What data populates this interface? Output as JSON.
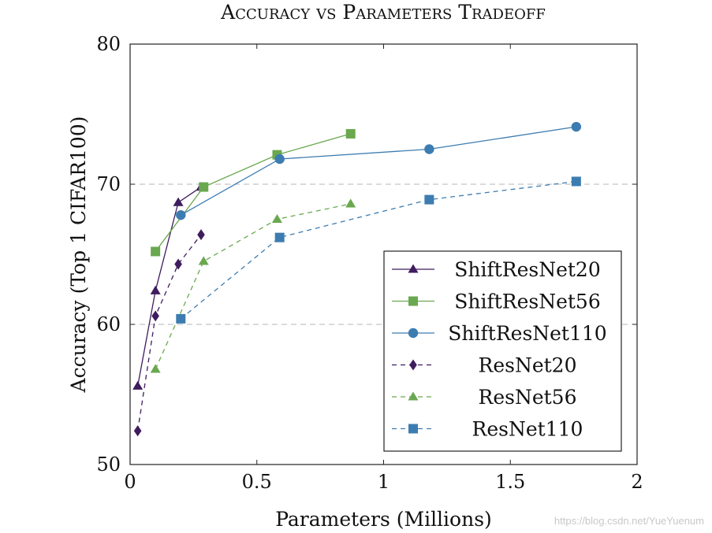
{
  "chart_data": {
    "type": "line",
    "title": "Accuracy vs Parameters Tradeoff",
    "xlabel": "Parameters (Millions)",
    "ylabel": "Accuracy (Top 1 CIFAR100)",
    "xlim": [
      0,
      2
    ],
    "ylim": [
      50,
      80
    ],
    "xticks": [
      0,
      0.5,
      1,
      1.5,
      2
    ],
    "xtick_labels": [
      "0",
      "0.5",
      "1",
      "1.5",
      "2"
    ],
    "yticks": [
      50,
      60,
      70,
      80
    ],
    "ytick_labels": [
      "50",
      "60",
      "70",
      "80"
    ],
    "hgrid": [
      60,
      70
    ],
    "legend_position": "bottom-right",
    "series": [
      {
        "name": "ShiftResNet20",
        "color": "#3f1c5e",
        "marker": "triangle",
        "dash": "solid",
        "x": [
          0.03,
          0.1,
          0.19,
          0.28
        ],
        "y": [
          55.6,
          62.4,
          68.7,
          69.8
        ]
      },
      {
        "name": "ShiftResNet56",
        "color": "#6aa84f",
        "marker": "square",
        "dash": "solid",
        "x": [
          0.1,
          0.29,
          0.58,
          0.87
        ],
        "y": [
          65.2,
          69.8,
          72.1,
          73.6
        ]
      },
      {
        "name": "ShiftResNet110",
        "color": "#3d7cb0",
        "marker": "circle",
        "dash": "solid",
        "x": [
          0.2,
          0.59,
          1.18,
          1.76
        ],
        "y": [
          67.8,
          71.8,
          72.5,
          74.1
        ]
      },
      {
        "name": "ResNet20",
        "color": "#3f1c5e",
        "marker": "diamond",
        "dash": "dashed",
        "x": [
          0.03,
          0.1,
          0.19,
          0.28
        ],
        "y": [
          52.4,
          60.6,
          64.3,
          66.4
        ]
      },
      {
        "name": "ResNet56",
        "color": "#6aa84f",
        "marker": "triangle",
        "dash": "dashed",
        "x": [
          0.1,
          0.29,
          0.58,
          0.87
        ],
        "y": [
          56.8,
          64.5,
          67.5,
          68.6
        ]
      },
      {
        "name": "ResNet110",
        "color": "#3d7cb0",
        "marker": "square",
        "dash": "dashed",
        "x": [
          0.2,
          0.59,
          1.18,
          1.76
        ],
        "y": [
          60.4,
          66.2,
          68.9,
          70.2
        ]
      }
    ]
  },
  "watermark": "https://blog.csdn.net/YueYuenum"
}
